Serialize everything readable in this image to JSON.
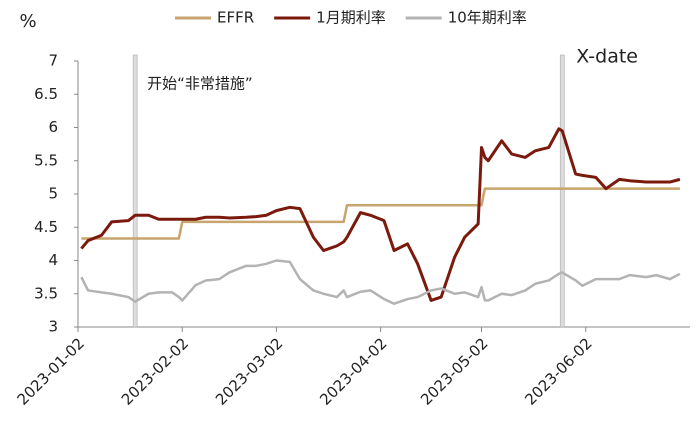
{
  "chart_data": {
    "type": "line",
    "y_label": "%",
    "x": [
      "2023-01-03",
      "2023-01-05",
      "2023-01-09",
      "2023-01-12",
      "2023-01-17",
      "2023-01-19",
      "2023-01-23",
      "2023-01-26",
      "2023-01-30",
      "2023-02-01",
      "2023-02-02",
      "2023-02-06",
      "2023-02-09",
      "2023-02-13",
      "2023-02-16",
      "2023-02-21",
      "2023-02-24",
      "2023-02-27",
      "2023-03-02",
      "2023-03-06",
      "2023-03-09",
      "2023-03-13",
      "2023-03-16",
      "2023-03-20",
      "2023-03-22",
      "2023-03-23",
      "2023-03-27",
      "2023-03-30",
      "2023-04-03",
      "2023-04-06",
      "2023-04-10",
      "2023-04-13",
      "2023-04-17",
      "2023-04-20",
      "2023-04-24",
      "2023-04-27",
      "2023-05-01",
      "2023-05-02",
      "2023-05-03",
      "2023-05-04",
      "2023-05-08",
      "2023-05-11",
      "2023-05-15",
      "2023-05-18",
      "2023-05-22",
      "2023-05-25",
      "2023-05-26",
      "2023-05-30",
      "2023-06-01",
      "2023-06-05",
      "2023-06-08",
      "2023-06-12",
      "2023-06-15",
      "2023-06-20",
      "2023-06-23",
      "2023-06-27",
      "2023-06-30"
    ],
    "series": [
      {
        "name": "EFFR",
        "color": "#c8a46e",
        "values": [
          4.33,
          4.33,
          4.33,
          4.33,
          4.33,
          4.33,
          4.33,
          4.33,
          4.33,
          4.33,
          4.58,
          4.58,
          4.58,
          4.58,
          4.58,
          4.58,
          4.58,
          4.58,
          4.58,
          4.58,
          4.58,
          4.58,
          4.58,
          4.58,
          4.58,
          4.83,
          4.83,
          4.83,
          4.83,
          4.83,
          4.83,
          4.83,
          4.83,
          4.83,
          4.83,
          4.83,
          4.83,
          4.83,
          5.08,
          5.08,
          5.08,
          5.08,
          5.08,
          5.08,
          5.08,
          5.08,
          5.08,
          5.08,
          5.08,
          5.08,
          5.08,
          5.08,
          5.08,
          5.08,
          5.08,
          5.08,
          5.08
        ]
      },
      {
        "name": "1月期利率",
        "color": "#7b1a0c",
        "values": [
          4.18,
          4.3,
          4.38,
          4.58,
          4.6,
          4.68,
          4.68,
          4.62,
          4.62,
          4.62,
          4.62,
          4.62,
          4.65,
          4.65,
          4.64,
          4.65,
          4.66,
          4.68,
          4.75,
          4.8,
          4.78,
          4.35,
          4.15,
          4.22,
          4.28,
          4.35,
          4.72,
          4.68,
          4.6,
          4.15,
          4.25,
          3.95,
          3.4,
          3.45,
          4.05,
          4.35,
          4.55,
          5.7,
          5.55,
          5.5,
          5.8,
          5.6,
          5.55,
          5.65,
          5.7,
          5.98,
          5.95,
          5.3,
          5.28,
          5.25,
          5.08,
          5.22,
          5.2,
          5.18,
          5.18,
          5.18,
          5.22
        ]
      },
      {
        "name": "10年期利率",
        "color": "#b3b3b3",
        "values": [
          3.75,
          3.55,
          3.52,
          3.5,
          3.45,
          3.38,
          3.5,
          3.52,
          3.52,
          3.45,
          3.4,
          3.63,
          3.7,
          3.72,
          3.82,
          3.92,
          3.92,
          3.95,
          4.0,
          3.98,
          3.72,
          3.55,
          3.5,
          3.45,
          3.55,
          3.45,
          3.53,
          3.55,
          3.42,
          3.35,
          3.42,
          3.45,
          3.55,
          3.58,
          3.5,
          3.52,
          3.45,
          3.6,
          3.4,
          3.4,
          3.5,
          3.48,
          3.55,
          3.65,
          3.7,
          3.8,
          3.82,
          3.7,
          3.62,
          3.72,
          3.72,
          3.72,
          3.78,
          3.75,
          3.78,
          3.72,
          3.8
        ]
      }
    ],
    "xlim": [
      "2023-01-02",
      "2023-07-03"
    ],
    "xticks": [
      "2023-01-02",
      "2023-02-02",
      "2023-03-02",
      "2023-04-02",
      "2023-05-02",
      "2023-06-02"
    ],
    "ylim": [
      3,
      7
    ],
    "yticks": [
      3,
      3.5,
      4,
      4.5,
      5,
      5.5,
      6,
      6.5,
      7
    ],
    "annotations": [
      {
        "text": "开始“非常措施”",
        "x": "2023-01-19"
      },
      {
        "text": "X-date",
        "x": "2023-05-26"
      }
    ]
  }
}
